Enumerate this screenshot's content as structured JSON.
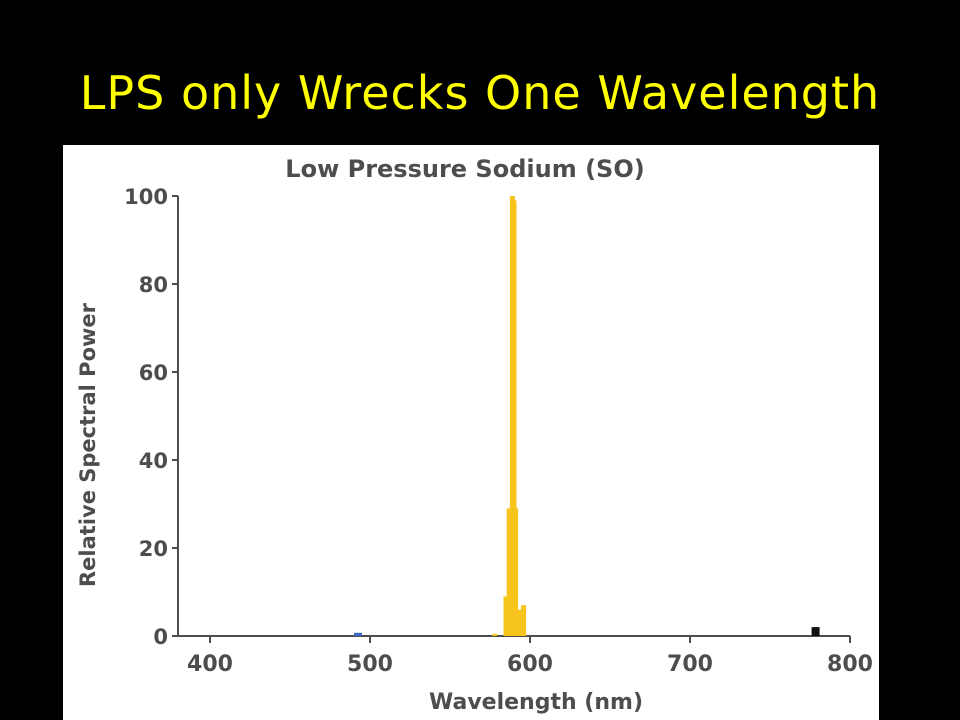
{
  "slide": {
    "title": "LPS only Wrecks One Wavelength"
  },
  "colors": {
    "background": "#000000",
    "title": "#ffff00",
    "panel": "#ffffff",
    "axis": "#4d4d4d",
    "sodium_line": "#f7c41c",
    "blue_trace": "#3a6cc4",
    "black_marker": "#111111"
  },
  "chart_data": {
    "type": "bar",
    "title": "Low Pressure Sodium (SO)",
    "xlabel": "Wavelength (nm)",
    "ylabel": "Relative Spectral Power",
    "xlim": [
      380,
      800
    ],
    "ylim": [
      0,
      100
    ],
    "x_ticks": [
      400,
      500,
      600,
      700,
      800
    ],
    "y_ticks": [
      0,
      20,
      40,
      60,
      80,
      100
    ],
    "grid": false,
    "legend": "none",
    "series": [
      {
        "color": "#f7c41c",
        "x": [
          578,
          585,
          587,
          588,
          589,
          590,
          591,
          593,
          596
        ],
        "values": [
          0.5,
          9,
          29,
          29,
          100,
          99,
          29,
          6,
          7
        ]
      }
    ],
    "minor_traces": [
      {
        "color": "#3a6cc4",
        "x": [
          490,
          495
        ],
        "values": [
          0.5,
          0.5
        ]
      },
      {
        "color": "#111111",
        "x": [
          776,
          781
        ],
        "values": [
          1.8,
          1.8
        ]
      }
    ]
  }
}
